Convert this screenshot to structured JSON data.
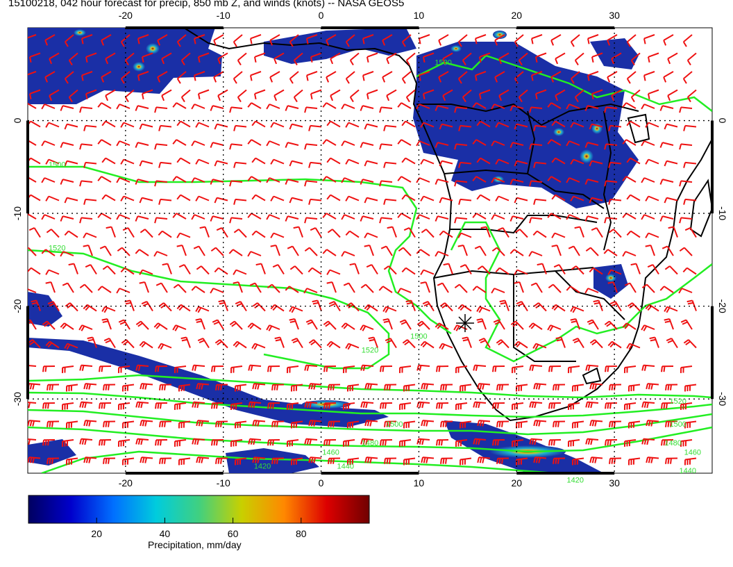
{
  "title": "15100218, 042 hour forecast for precip, 850 mb Z, and winds (knots) -- NASA GEOS5",
  "map": {
    "lon_range": [
      -30,
      40
    ],
    "lat_range": [
      -38,
      10
    ],
    "lon_ticks": [
      "-20",
      "-10",
      "0",
      "10",
      "20",
      "30"
    ],
    "lat_ticks": [
      "0",
      "-10",
      "-20",
      "-30"
    ],
    "graticule_lon": [
      -20,
      -10,
      0,
      10,
      20,
      30
    ],
    "graticule_lat": [
      0,
      -10,
      -20,
      -30
    ],
    "contour_labels": [
      {
        "text": "1500",
        "lon": -27,
        "lat": -5
      },
      {
        "text": "1520",
        "lon": -27,
        "lat": -14
      },
      {
        "text": "1500",
        "lon": 12.5,
        "lat": 6
      },
      {
        "text": "1520",
        "lon": 5,
        "lat": -25
      },
      {
        "text": "1500",
        "lon": 10,
        "lat": -23.5
      },
      {
        "text": "1500",
        "lon": 7.5,
        "lat": -33
      },
      {
        "text": "1480",
        "lon": 5,
        "lat": -35
      },
      {
        "text": "1460",
        "lon": 1,
        "lat": -36
      },
      {
        "text": "1440",
        "lon": 2.5,
        "lat": -37.5
      },
      {
        "text": "1420",
        "lon": -6,
        "lat": -37.5
      },
      {
        "text": "1520",
        "lon": 36.5,
        "lat": -30.5
      },
      {
        "text": "1500",
        "lon": 36.5,
        "lat": -33
      },
      {
        "text": "1480",
        "lon": 36,
        "lat": -35
      },
      {
        "text": "1460",
        "lon": 38,
        "lat": -36
      },
      {
        "text": "1440",
        "lon": 37.5,
        "lat": -38
      },
      {
        "text": "1420",
        "lon": 26,
        "lat": -39
      }
    ],
    "colors": {
      "precip_fill": "#1a2fa6",
      "precip_core": "#e8c020",
      "contour": "#22ee22",
      "wind_barb": "#ee1111",
      "coastline": "#000000"
    }
  },
  "colorbar": {
    "range": [
      0,
      100
    ],
    "tick_values": [
      20,
      40,
      60,
      80
    ],
    "tick_labels": [
      "20",
      "40",
      "60",
      "80"
    ],
    "caption": "Precipitation, mm/day",
    "stops": [
      "#000060",
      "#0000cc",
      "#0070ff",
      "#00ccdd",
      "#40d080",
      "#c8d000",
      "#ff8800",
      "#dd0000",
      "#700000"
    ]
  }
}
